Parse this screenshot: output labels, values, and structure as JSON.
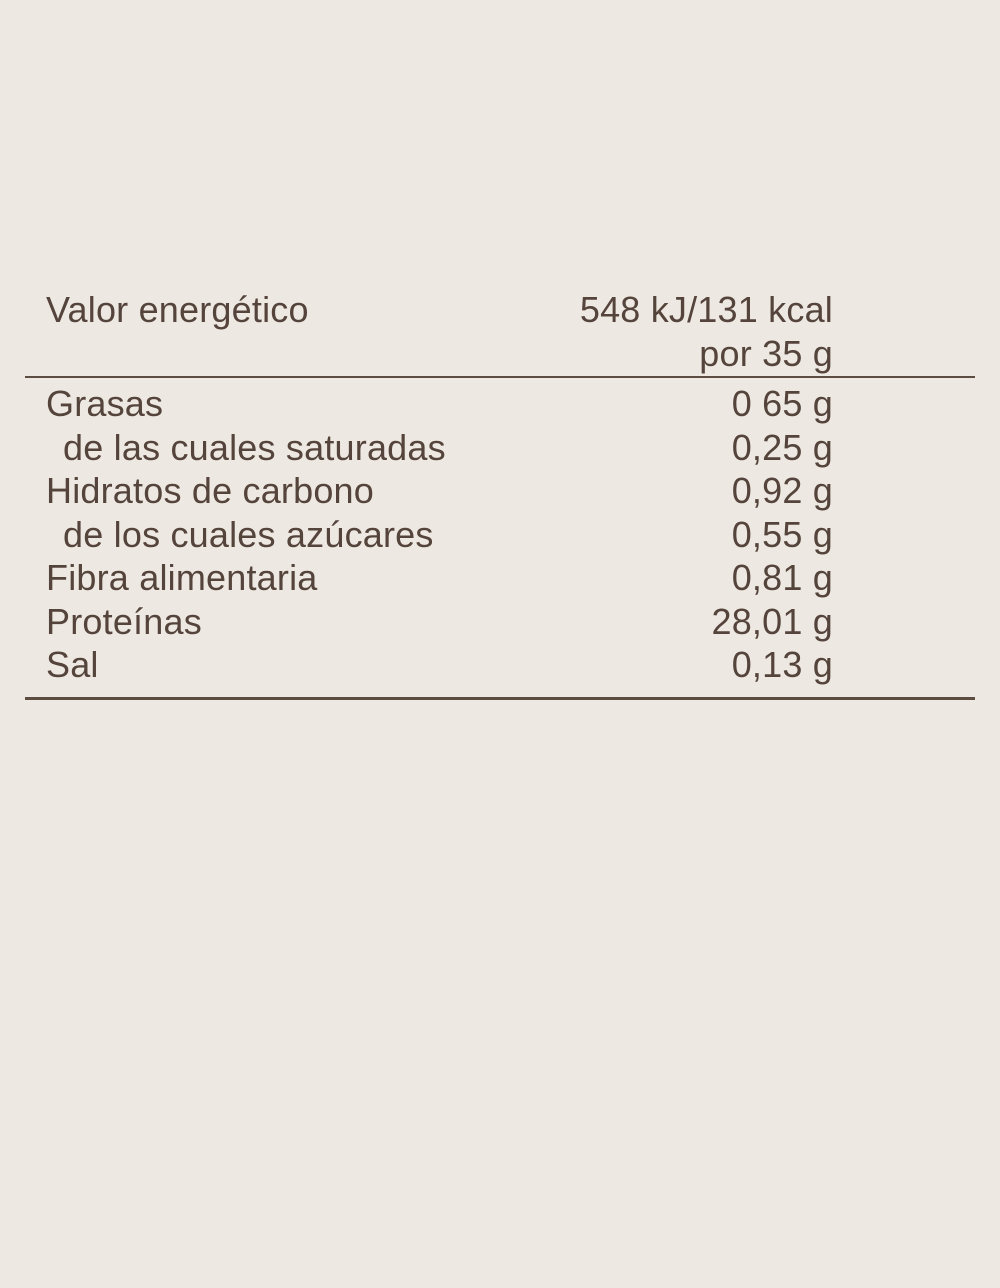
{
  "colors": {
    "background": "#EDE9E2",
    "text": "#55443B",
    "divider": "#5D4C41"
  },
  "table": {
    "header": {
      "label": "Valor energético",
      "value_line1": "548 kJ/131 kcal",
      "value_line2": "por 35 g"
    },
    "rows": [
      {
        "label": "Grasas",
        "value": "0 65 g"
      },
      {
        "label": "de las cuales saturadas",
        "value": "0,25 g"
      },
      {
        "label": "Hidratos de carbono",
        "value": "0,92 g"
      },
      {
        "label": "de los cuales azúcares",
        "value": "0,55 g"
      },
      {
        "label": "Fibra alimentaria",
        "value": "0,81 g"
      },
      {
        "label": "Proteínas",
        "value": "28,01 g"
      },
      {
        "label": "Sal",
        "value": "0,13 g"
      }
    ]
  }
}
